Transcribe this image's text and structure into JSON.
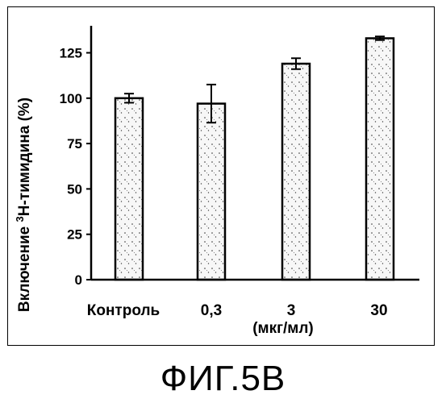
{
  "figure": {
    "caption": "ФИГ.5В"
  },
  "chart_data": {
    "type": "bar",
    "title": "",
    "categories": [
      "Контроль",
      "0,3",
      "3",
      "30"
    ],
    "xlabel": "(мкг/мл)",
    "ylabel_prefix": "Включение ",
    "ylabel_sup": "3",
    "ylabel_suffix": "Н-тимидина (%)",
    "ylabel": "Включение 3Н-тимидина (%)",
    "ylim": [
      0,
      135
    ],
    "yticks": [
      "0",
      "25",
      "50",
      "75",
      "100",
      "125"
    ],
    "series": [
      {
        "values": [
          100,
          97,
          119,
          133
        ],
        "errors": [
          2.5,
          10.5,
          3,
          1
        ]
      }
    ],
    "grid": false,
    "legend": false,
    "bar_fill": "#f4f4f4",
    "stroke_color": "#000000"
  }
}
